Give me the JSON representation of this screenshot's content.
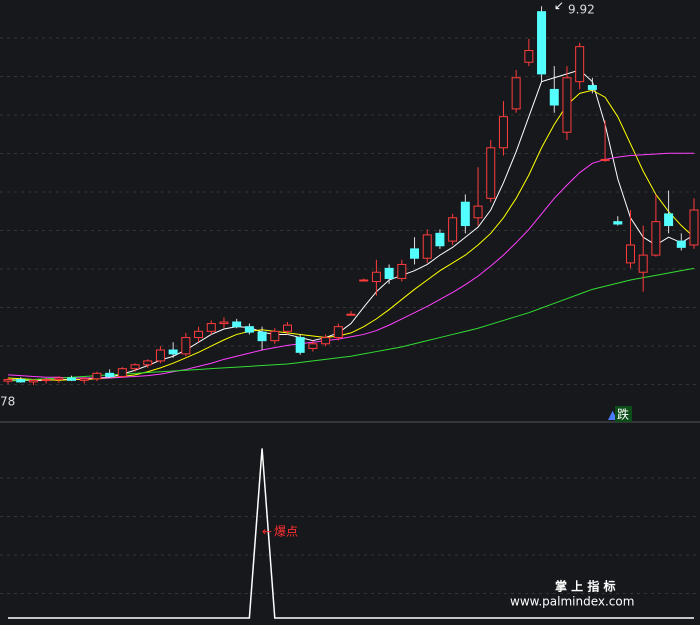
{
  "chart_data": {
    "type": "candlestick",
    "ylim": [
      4.6,
      10.0
    ],
    "ohlc": [
      [
        5.1,
        5.14,
        5.06,
        5.12
      ],
      [
        5.12,
        5.15,
        5.08,
        5.09
      ],
      [
        5.09,
        5.13,
        5.05,
        5.11
      ],
      [
        5.11,
        5.14,
        5.07,
        5.12
      ],
      [
        5.12,
        5.16,
        5.08,
        5.14
      ],
      [
        5.14,
        5.17,
        5.1,
        5.11
      ],
      [
        5.11,
        5.15,
        5.07,
        5.13
      ],
      [
        5.13,
        5.22,
        5.1,
        5.2
      ],
      [
        5.2,
        5.25,
        5.14,
        5.16
      ],
      [
        5.16,
        5.28,
        5.14,
        5.26
      ],
      [
        5.26,
        5.33,
        5.22,
        5.31
      ],
      [
        5.31,
        5.38,
        5.27,
        5.36
      ],
      [
        5.36,
        5.55,
        5.33,
        5.5
      ],
      [
        5.5,
        5.6,
        5.4,
        5.45
      ],
      [
        5.45,
        5.72,
        5.42,
        5.66
      ],
      [
        5.66,
        5.8,
        5.6,
        5.74
      ],
      [
        5.74,
        5.88,
        5.7,
        5.84
      ],
      [
        5.84,
        5.92,
        5.78,
        5.86
      ],
      [
        5.86,
        5.9,
        5.78,
        5.8
      ],
      [
        5.8,
        5.84,
        5.7,
        5.73
      ],
      [
        5.73,
        5.8,
        5.5,
        5.62
      ],
      [
        5.62,
        5.78,
        5.58,
        5.74
      ],
      [
        5.74,
        5.86,
        5.7,
        5.82
      ],
      [
        5.66,
        5.7,
        5.44,
        5.47
      ],
      [
        5.52,
        5.62,
        5.48,
        5.58
      ],
      [
        5.58,
        5.7,
        5.55,
        5.66
      ],
      [
        5.66,
        5.84,
        5.62,
        5.8
      ],
      [
        5.95,
        6.0,
        5.95,
        5.96
      ],
      [
        6.4,
        6.42,
        6.38,
        6.4
      ],
      [
        6.38,
        6.66,
        6.2,
        6.5
      ],
      [
        6.55,
        6.6,
        6.35,
        6.42
      ],
      [
        6.42,
        6.66,
        6.38,
        6.6
      ],
      [
        6.8,
        6.95,
        6.6,
        6.68
      ],
      [
        6.68,
        7.05,
        6.62,
        6.98
      ],
      [
        7.0,
        7.05,
        6.8,
        6.84
      ],
      [
        6.9,
        7.25,
        6.85,
        7.2
      ],
      [
        7.4,
        7.5,
        7.0,
        7.1
      ],
      [
        7.2,
        7.85,
        7.1,
        7.35
      ],
      [
        7.45,
        8.2,
        7.4,
        8.1
      ],
      [
        8.1,
        8.7,
        8.0,
        8.5
      ],
      [
        8.6,
        9.1,
        8.55,
        9.0
      ],
      [
        9.2,
        9.5,
        9.15,
        9.35
      ],
      [
        9.85,
        9.92,
        8.95,
        9.05
      ],
      [
        8.85,
        9.15,
        8.55,
        8.65
      ],
      [
        8.3,
        9.15,
        8.2,
        9.0
      ],
      [
        8.95,
        9.45,
        8.85,
        9.4
      ],
      [
        8.9,
        9.0,
        8.8,
        8.85
      ],
      [
        7.95,
        8.45,
        7.92,
        7.95
      ],
      [
        7.15,
        7.22,
        7.1,
        7.12
      ],
      [
        6.62,
        7.3,
        6.55,
        6.85
      ],
      [
        6.5,
        7.1,
        6.25,
        6.72
      ],
      [
        6.72,
        7.5,
        6.7,
        7.15
      ],
      [
        7.25,
        7.55,
        7.0,
        7.1
      ],
      [
        6.9,
        7.0,
        6.78,
        6.82
      ],
      [
        6.85,
        7.45,
        6.8,
        7.3
      ]
    ],
    "up_color": "#ff3c3c",
    "down_color": "#54ffff",
    "series": [
      {
        "color": "#ffffff",
        "values": [
          5.12,
          5.11,
          5.11,
          5.11,
          5.12,
          5.12,
          5.12,
          5.14,
          5.15,
          5.19,
          5.24,
          5.3,
          5.37,
          5.42,
          5.5,
          5.6,
          5.7,
          5.77,
          5.8,
          5.79,
          5.73,
          5.7,
          5.7,
          5.66,
          5.62,
          5.66,
          5.72,
          5.84,
          6.05,
          6.25,
          6.4,
          6.46,
          6.52,
          6.6,
          6.72,
          6.82,
          6.95,
          7.08,
          7.3,
          7.65,
          8.05,
          8.5,
          8.95,
          9.0,
          9.05,
          9.1,
          8.95,
          8.4,
          7.7,
          7.2,
          6.95,
          6.85,
          6.95,
          6.88,
          6.98
        ]
      },
      {
        "color": "#ffff00",
        "values": [
          5.14,
          5.13,
          5.12,
          5.12,
          5.11,
          5.12,
          5.12,
          5.13,
          5.14,
          5.16,
          5.18,
          5.22,
          5.27,
          5.33,
          5.4,
          5.47,
          5.55,
          5.63,
          5.7,
          5.74,
          5.76,
          5.74,
          5.72,
          5.7,
          5.68,
          5.66,
          5.68,
          5.72,
          5.8,
          5.9,
          6.02,
          6.15,
          6.28,
          6.4,
          6.52,
          6.62,
          6.72,
          6.85,
          7.0,
          7.2,
          7.45,
          7.75,
          8.1,
          8.4,
          8.65,
          8.8,
          8.84,
          8.75,
          8.5,
          8.15,
          7.8,
          7.5,
          7.28,
          7.1,
          6.95
        ]
      },
      {
        "color": "#ff40ff",
        "values": [
          5.18,
          5.17,
          5.16,
          5.15,
          5.15,
          5.14,
          5.14,
          5.14,
          5.14,
          5.15,
          5.16,
          5.17,
          5.19,
          5.22,
          5.25,
          5.29,
          5.33,
          5.38,
          5.42,
          5.46,
          5.5,
          5.53,
          5.56,
          5.58,
          5.6,
          5.62,
          5.64,
          5.67,
          5.7,
          5.75,
          5.82,
          5.9,
          5.98,
          6.06,
          6.15,
          6.24,
          6.34,
          6.45,
          6.58,
          6.72,
          6.88,
          7.05,
          7.25,
          7.45,
          7.62,
          7.78,
          7.9,
          7.95,
          7.98,
          8.0,
          8.01,
          8.02,
          8.03,
          8.03,
          8.03
        ]
      },
      {
        "color": "#33dd33",
        "values": [
          5.1,
          5.11,
          5.12,
          5.13,
          5.14,
          5.15,
          5.16,
          5.17,
          5.18,
          5.19,
          5.2,
          5.21,
          5.22,
          5.23,
          5.24,
          5.25,
          5.26,
          5.27,
          5.28,
          5.29,
          5.3,
          5.31,
          5.32,
          5.34,
          5.36,
          5.38,
          5.4,
          5.42,
          5.45,
          5.48,
          5.51,
          5.54,
          5.58,
          5.62,
          5.66,
          5.7,
          5.74,
          5.78,
          5.83,
          5.88,
          5.93,
          5.98,
          6.04,
          6.1,
          6.16,
          6.22,
          6.28,
          6.32,
          6.36,
          6.4,
          6.43,
          6.46,
          6.49,
          6.52,
          6.55
        ]
      }
    ],
    "high_label": "9.92",
    "low_label": "78",
    "indicator": {
      "color": "#ffffff",
      "ylim": [
        0,
        105
      ],
      "values": [
        0,
        0,
        0,
        0,
        0,
        0,
        0,
        0,
        0,
        0,
        0,
        0,
        0,
        0,
        0,
        0,
        0,
        0,
        0,
        0,
        100,
        0,
        0,
        0,
        0,
        0,
        0,
        0,
        0,
        0,
        0,
        0,
        0,
        0,
        0,
        0,
        0,
        0,
        0,
        0,
        0,
        0,
        0,
        0,
        0,
        0,
        0,
        0,
        0,
        0,
        0,
        0,
        0,
        0,
        0
      ],
      "label": "爆点"
    },
    "signal": "跌",
    "watermark": [
      "掌 上 指 标",
      "www.palmindex.com"
    ]
  }
}
